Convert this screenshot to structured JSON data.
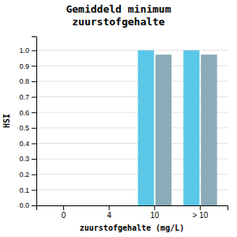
{
  "chart_data": {
    "type": "bar",
    "title": "Gemiddeld minimum\nzuurstofgehalte",
    "xlabel": "zuurstofgehalte (mg/L)",
    "ylabel": "HSI",
    "categories": [
      "0",
      "4",
      "10",
      "> 10"
    ],
    "series": [
      {
        "color": "#5bc8e8",
        "values": [
          null,
          null,
          1.0,
          1.0
        ]
      },
      {
        "color": "#8aabb8",
        "values": [
          null,
          null,
          0.972,
          0.972
        ]
      }
    ],
    "ylim": [
      0.0,
      1.09
    ],
    "yticks": [
      {
        "value": 0.0,
        "label": "0.0"
      },
      0.1,
      0.2,
      0.3,
      0.4,
      0.5,
      0.6,
      0.7,
      0.8,
      0.9,
      {
        "value": 1.0,
        "label": "1.0"
      }
    ],
    "grid": true
  }
}
